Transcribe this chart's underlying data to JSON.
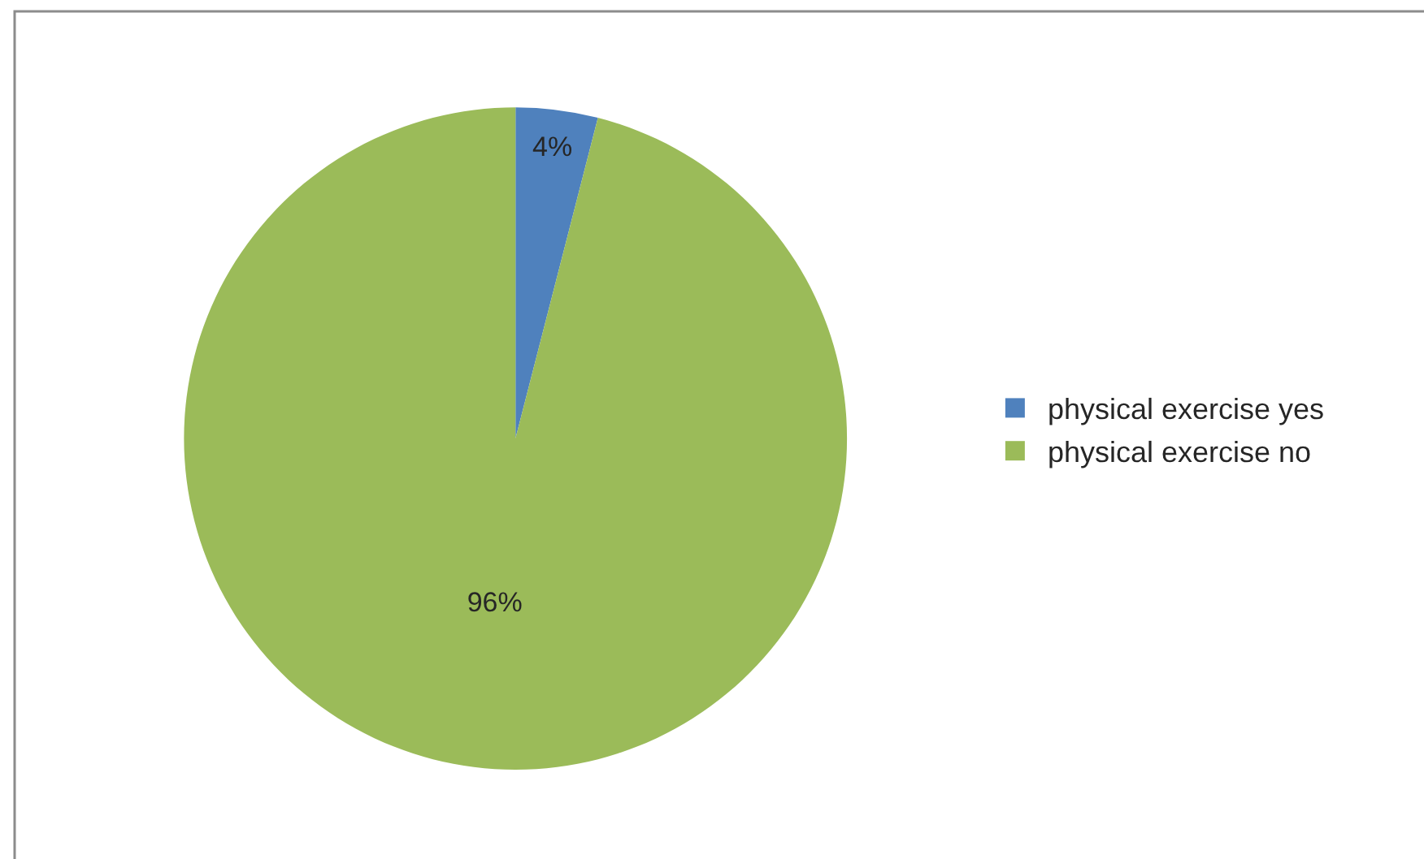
{
  "chart_data": {
    "type": "pie",
    "categories": [
      "physical exercise yes",
      "physical exercise no"
    ],
    "values": [
      4,
      96
    ],
    "colors": [
      "#4f81bd",
      "#9bbb59"
    ],
    "value_labels": [
      "4%",
      "96%"
    ],
    "legend": "right"
  }
}
